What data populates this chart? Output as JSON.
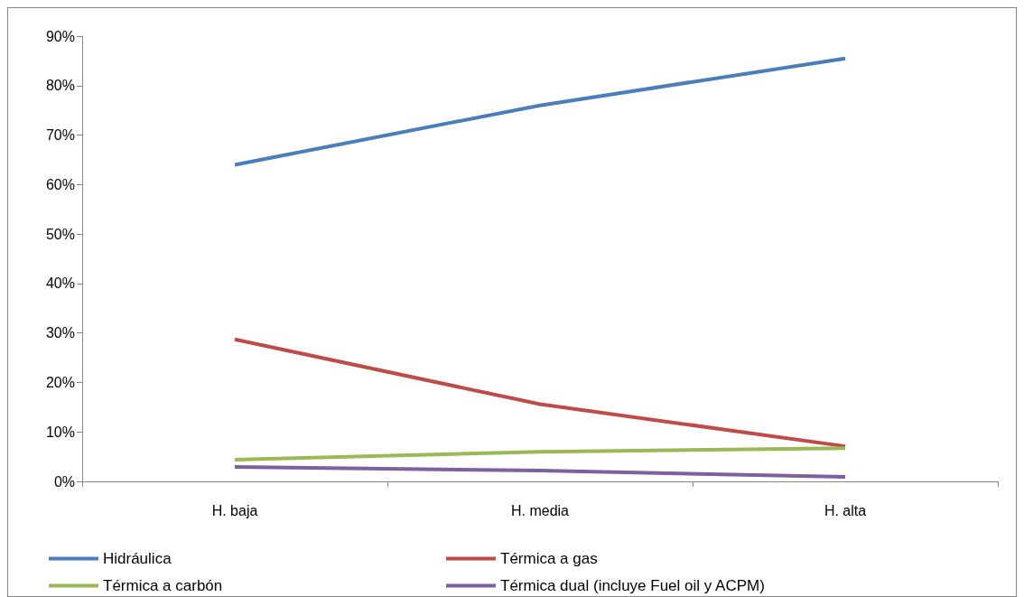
{
  "chart_data": {
    "type": "line",
    "categories": [
      "H. baja",
      "H. media",
      "H. alta"
    ],
    "series": [
      {
        "name": "Hidráulica",
        "color": "#4a7ebb",
        "values": [
          64,
          76,
          85.5
        ]
      },
      {
        "name": "Térmica a gas",
        "color": "#be4b48",
        "values": [
          28.7,
          15.6,
          7.1
        ]
      },
      {
        "name": "Térmica a carbón",
        "color": "#98b954",
        "values": [
          4.4,
          6,
          6.7
        ]
      },
      {
        "name": "Térmica dual (incluye Fuel oil y ACPM)",
        "color": "#7d60a0",
        "values": [
          2.9,
          2.2,
          0.9
        ]
      }
    ],
    "ylim": [
      0,
      90
    ],
    "yticks": [
      {
        "value": 0,
        "label": "0%"
      },
      {
        "value": 10,
        "label": "10%"
      },
      {
        "value": 20,
        "label": "20%"
      },
      {
        "value": 30,
        "label": "30%"
      },
      {
        "value": 40,
        "label": "40%"
      },
      {
        "value": 50,
        "label": "50%"
      },
      {
        "value": 60,
        "label": "60%"
      },
      {
        "value": 70,
        "label": "70%"
      },
      {
        "value": 80,
        "label": "80%"
      },
      {
        "value": 90,
        "label": "90%"
      }
    ],
    "grid": false,
    "legend": "bottom",
    "marker": "none",
    "line_style": "solid"
  }
}
